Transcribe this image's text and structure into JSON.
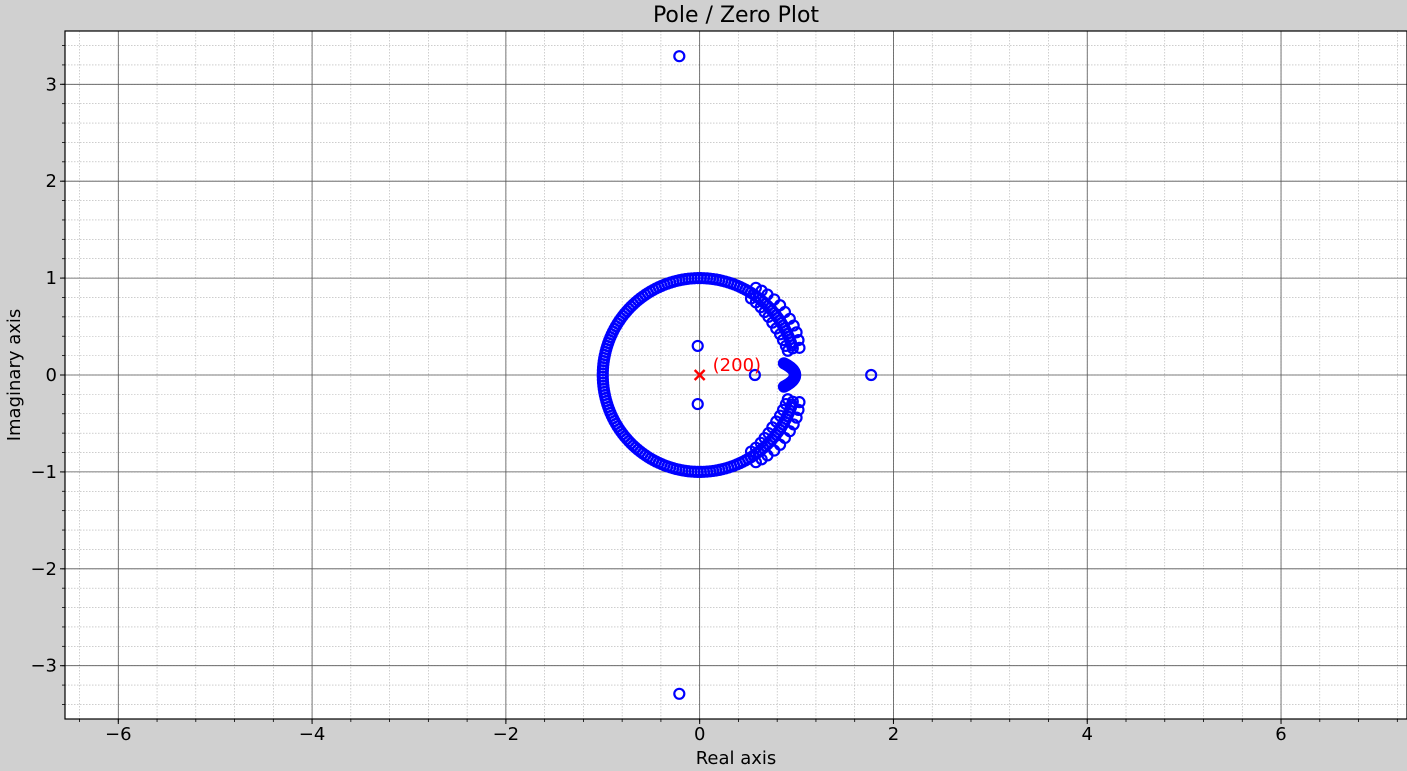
{
  "chart_data": {
    "type": "scatter",
    "title": "Pole / Zero Plot",
    "xlabel": "Real axis",
    "ylabel": "Imaginary axis",
    "xlim": [
      -6.55,
      7.3
    ],
    "ylim": [
      -3.55,
      3.55
    ],
    "xticks": [
      -6,
      -4,
      -2,
      0,
      2,
      4,
      6
    ],
    "xtick_labels": [
      "−6",
      "−4",
      "−2",
      "0",
      "2",
      "4",
      "6"
    ],
    "yticks": [
      -3,
      -2,
      -1,
      0,
      1,
      2,
      3
    ],
    "ytick_labels": [
      "−3",
      "−2",
      "−1",
      "0",
      "1",
      "2",
      "3"
    ],
    "grid": true,
    "minor_grid": true,
    "zero_marker": "o",
    "pole_marker": "x",
    "zero_color": "#0000ff",
    "pole_color": "#ff0000",
    "poles": [
      {
        "x": 0.0,
        "y": 0.0,
        "label": "(200)"
      }
    ],
    "zeros": {
      "isolated": [
        {
          "x": -0.21,
          "y": 3.29
        },
        {
          "x": -0.21,
          "y": -3.29
        },
        {
          "x": -0.02,
          "y": 0.3
        },
        {
          "x": -0.02,
          "y": -0.3
        },
        {
          "x": 0.57,
          "y": 0.0
        },
        {
          "x": 1.77,
          "y": 0.0
        }
      ],
      "unit_circle_arc": {
        "radius": 1.0,
        "from_deg": 16,
        "to_deg": 344,
        "count": 180
      },
      "inner_band": {
        "from_deg": -28,
        "to_deg": 28,
        "count": 30
      },
      "outer_arc": [
        {
          "x": 0.58,
          "y": 0.9
        },
        {
          "x": 0.64,
          "y": 0.87
        },
        {
          "x": 0.7,
          "y": 0.83
        },
        {
          "x": 0.77,
          "y": 0.78
        },
        {
          "x": 0.83,
          "y": 0.72
        },
        {
          "x": 0.88,
          "y": 0.65
        },
        {
          "x": 0.93,
          "y": 0.58
        },
        {
          "x": 0.97,
          "y": 0.51
        },
        {
          "x": 1.0,
          "y": 0.44
        },
        {
          "x": 1.02,
          "y": 0.36
        },
        {
          "x": 1.03,
          "y": 0.28
        }
      ],
      "inner_arc": [
        {
          "x": 0.53,
          "y": 0.79
        },
        {
          "x": 0.58,
          "y": 0.75
        },
        {
          "x": 0.63,
          "y": 0.7
        },
        {
          "x": 0.67,
          "y": 0.65
        },
        {
          "x": 0.71,
          "y": 0.6
        },
        {
          "x": 0.75,
          "y": 0.54
        },
        {
          "x": 0.79,
          "y": 0.48
        },
        {
          "x": 0.83,
          "y": 0.42
        },
        {
          "x": 0.86,
          "y": 0.36
        },
        {
          "x": 0.89,
          "y": 0.3
        },
        {
          "x": 0.91,
          "y": 0.25
        }
      ]
    }
  }
}
